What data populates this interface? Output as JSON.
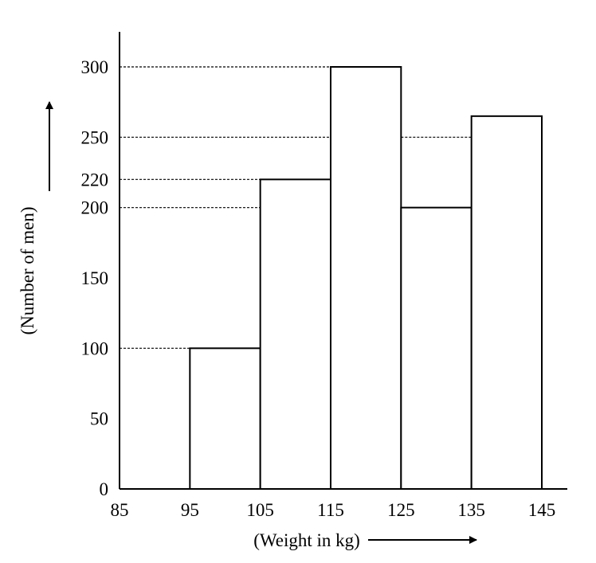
{
  "chart_data": {
    "type": "bar",
    "subtype": "histogram",
    "xlabel": "(Weight in kg)",
    "ylabel": "(Number of men)",
    "x_ticks": [
      "85",
      "95",
      "105",
      "115",
      "125",
      "135",
      "145"
    ],
    "y_ticks": [
      "0",
      "50",
      "100",
      "150",
      "200",
      "220",
      "250",
      "300"
    ],
    "bins": [
      {
        "from": 95,
        "to": 105,
        "value": 100
      },
      {
        "from": 105,
        "to": 115,
        "value": 220
      },
      {
        "from": 115,
        "to": 125,
        "value": 300
      },
      {
        "from": 125,
        "to": 135,
        "value": 200
      },
      {
        "from": 135,
        "to": 145,
        "value": 265
      }
    ],
    "guide_lines_at": [
      100,
      200,
      220,
      250,
      300
    ],
    "xlim": [
      85,
      145
    ],
    "ylim": [
      0,
      300
    ],
    "grid": false,
    "colors": {
      "bar_fill": "#ffffff",
      "bar_stroke": "#000000"
    }
  }
}
